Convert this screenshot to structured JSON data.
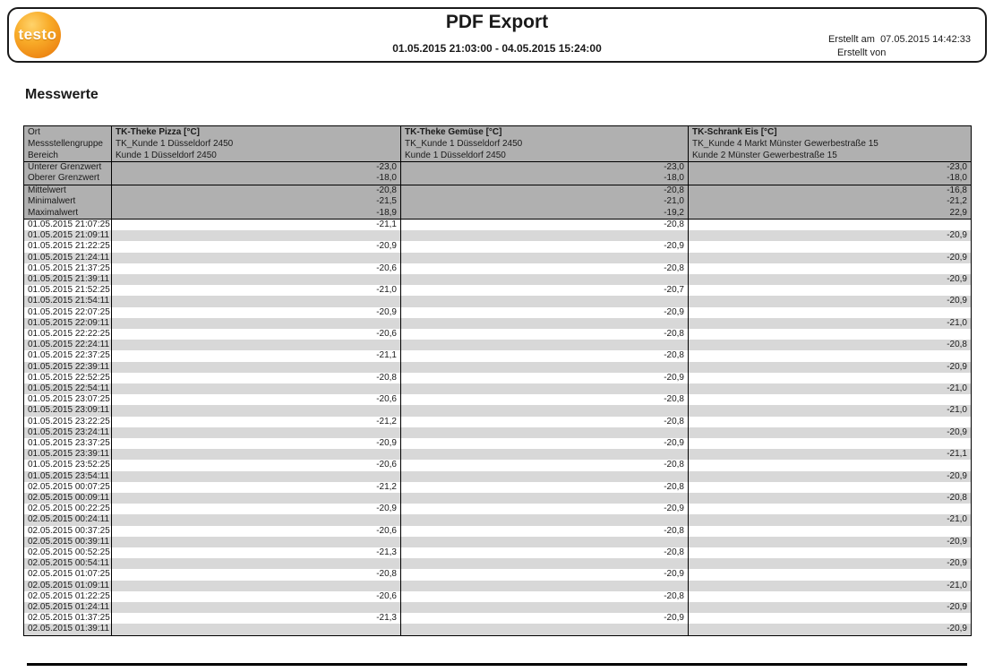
{
  "header": {
    "logo_text": "testo",
    "title": "PDF Export",
    "date_range": "01.05.2015 21:03:00 - 04.05.2015 15:24:00",
    "created_at_label": "Erstellt am",
    "created_at_value": "07.05.2015 14:42:33",
    "created_by_label": "Erstellt von"
  },
  "section_title": "Messwerte",
  "colors": {
    "table_header_bg": "#b0b0b0",
    "row_stripe_bg": "#d8d8d8",
    "logo_orange": "#ef8c17",
    "border": "#000000"
  },
  "table": {
    "meta_labels": [
      "Ort",
      "Messstellengruppe",
      "Bereich"
    ],
    "channels": [
      {
        "name": "TK-Theke Pizza [°C]",
        "group": "TK_Kunde 1 Düsseldorf 2450",
        "area": "Kunde 1 Düsseldorf 2450"
      },
      {
        "name": "TK-Theke Gemüse [°C]",
        "group": "TK_Kunde 1 Düsseldorf 2450",
        "area": "Kunde 1 Düsseldorf 2450"
      },
      {
        "name": "TK-Schrank Eis [°C]",
        "group": "TK_Kunde 4 Markt Münster Gewerbestraße 15",
        "area": "Kunde 2 Münster Gewerbestraße 15"
      }
    ],
    "limits": [
      {
        "label": "Unterer Grenzwert",
        "values": [
          "-23,0",
          "-23,0",
          "-23,0"
        ]
      },
      {
        "label": "Oberer Grenzwert",
        "values": [
          "-18,0",
          "-18,0",
          "-18,0"
        ]
      }
    ],
    "stats": [
      {
        "label": "Mittelwert",
        "values": [
          "-20,8",
          "-20,8",
          "-16,8"
        ]
      },
      {
        "label": "Minimalwert",
        "values": [
          "-21,5",
          "-21,0",
          "-21,2"
        ]
      },
      {
        "label": "Maximalwert",
        "values": [
          "-18,9",
          "-19,2",
          "22,9"
        ]
      }
    ],
    "rows": [
      {
        "t": "01.05.2015 21:07:25",
        "values": [
          "-21,1",
          "-20,8",
          ""
        ]
      },
      {
        "t": "01.05.2015 21:09:11",
        "values": [
          "",
          "",
          "-20,9"
        ]
      },
      {
        "t": "01.05.2015 21:22:25",
        "values": [
          "-20,9",
          "-20,9",
          ""
        ]
      },
      {
        "t": "01.05.2015 21:24:11",
        "values": [
          "",
          "",
          "-20,9"
        ]
      },
      {
        "t": "01.05.2015 21:37:25",
        "values": [
          "-20,6",
          "-20,8",
          ""
        ]
      },
      {
        "t": "01.05.2015 21:39:11",
        "values": [
          "",
          "",
          "-20,9"
        ]
      },
      {
        "t": "01.05.2015 21:52:25",
        "values": [
          "-21,0",
          "-20,7",
          ""
        ]
      },
      {
        "t": "01.05.2015 21:54:11",
        "values": [
          "",
          "",
          "-20,9"
        ]
      },
      {
        "t": "01.05.2015 22:07:25",
        "values": [
          "-20,9",
          "-20,9",
          ""
        ]
      },
      {
        "t": "01.05.2015 22:09:11",
        "values": [
          "",
          "",
          "-21,0"
        ]
      },
      {
        "t": "01.05.2015 22:22:25",
        "values": [
          "-20,6",
          "-20,8",
          ""
        ]
      },
      {
        "t": "01.05.2015 22:24:11",
        "values": [
          "",
          "",
          "-20,8"
        ]
      },
      {
        "t": "01.05.2015 22:37:25",
        "values": [
          "-21,1",
          "-20,8",
          ""
        ]
      },
      {
        "t": "01.05.2015 22:39:11",
        "values": [
          "",
          "",
          "-20,9"
        ]
      },
      {
        "t": "01.05.2015 22:52:25",
        "values": [
          "-20,8",
          "-20,9",
          ""
        ]
      },
      {
        "t": "01.05.2015 22:54:11",
        "values": [
          "",
          "",
          "-21,0"
        ]
      },
      {
        "t": "01.05.2015 23:07:25",
        "values": [
          "-20,6",
          "-20,8",
          ""
        ]
      },
      {
        "t": "01.05.2015 23:09:11",
        "values": [
          "",
          "",
          "-21,0"
        ]
      },
      {
        "t": "01.05.2015 23:22:25",
        "values": [
          "-21,2",
          "-20,8",
          ""
        ]
      },
      {
        "t": "01.05.2015 23:24:11",
        "values": [
          "",
          "",
          "-20,9"
        ]
      },
      {
        "t": "01.05.2015 23:37:25",
        "values": [
          "-20,9",
          "-20,9",
          ""
        ]
      },
      {
        "t": "01.05.2015 23:39:11",
        "values": [
          "",
          "",
          "-21,1"
        ]
      },
      {
        "t": "01.05.2015 23:52:25",
        "values": [
          "-20,6",
          "-20,8",
          ""
        ]
      },
      {
        "t": "01.05.2015 23:54:11",
        "values": [
          "",
          "",
          "-20,9"
        ]
      },
      {
        "t": "02.05.2015 00:07:25",
        "values": [
          "-21,2",
          "-20,8",
          ""
        ]
      },
      {
        "t": "02.05.2015 00:09:11",
        "values": [
          "",
          "",
          "-20,8"
        ]
      },
      {
        "t": "02.05.2015 00:22:25",
        "values": [
          "-20,9",
          "-20,9",
          ""
        ]
      },
      {
        "t": "02.05.2015 00:24:11",
        "values": [
          "",
          "",
          "-21,0"
        ]
      },
      {
        "t": "02.05.2015 00:37:25",
        "values": [
          "-20,6",
          "-20,8",
          ""
        ]
      },
      {
        "t": "02.05.2015 00:39:11",
        "values": [
          "",
          "",
          "-20,9"
        ]
      },
      {
        "t": "02.05.2015 00:52:25",
        "values": [
          "-21,3",
          "-20,8",
          ""
        ]
      },
      {
        "t": "02.05.2015 00:54:11",
        "values": [
          "",
          "",
          "-20,9"
        ]
      },
      {
        "t": "02.05.2015 01:07:25",
        "values": [
          "-20,8",
          "-20,9",
          ""
        ]
      },
      {
        "t": "02.05.2015 01:09:11",
        "values": [
          "",
          "",
          "-21,0"
        ]
      },
      {
        "t": "02.05.2015 01:22:25",
        "values": [
          "-20,6",
          "-20,8",
          ""
        ]
      },
      {
        "t": "02.05.2015 01:24:11",
        "values": [
          "",
          "",
          "-20,9"
        ]
      },
      {
        "t": "02.05.2015 01:37:25",
        "values": [
          "-21,3",
          "-20,9",
          ""
        ]
      },
      {
        "t": "02.05.2015 01:39:11",
        "values": [
          "",
          "",
          "-20,9"
        ]
      }
    ]
  }
}
